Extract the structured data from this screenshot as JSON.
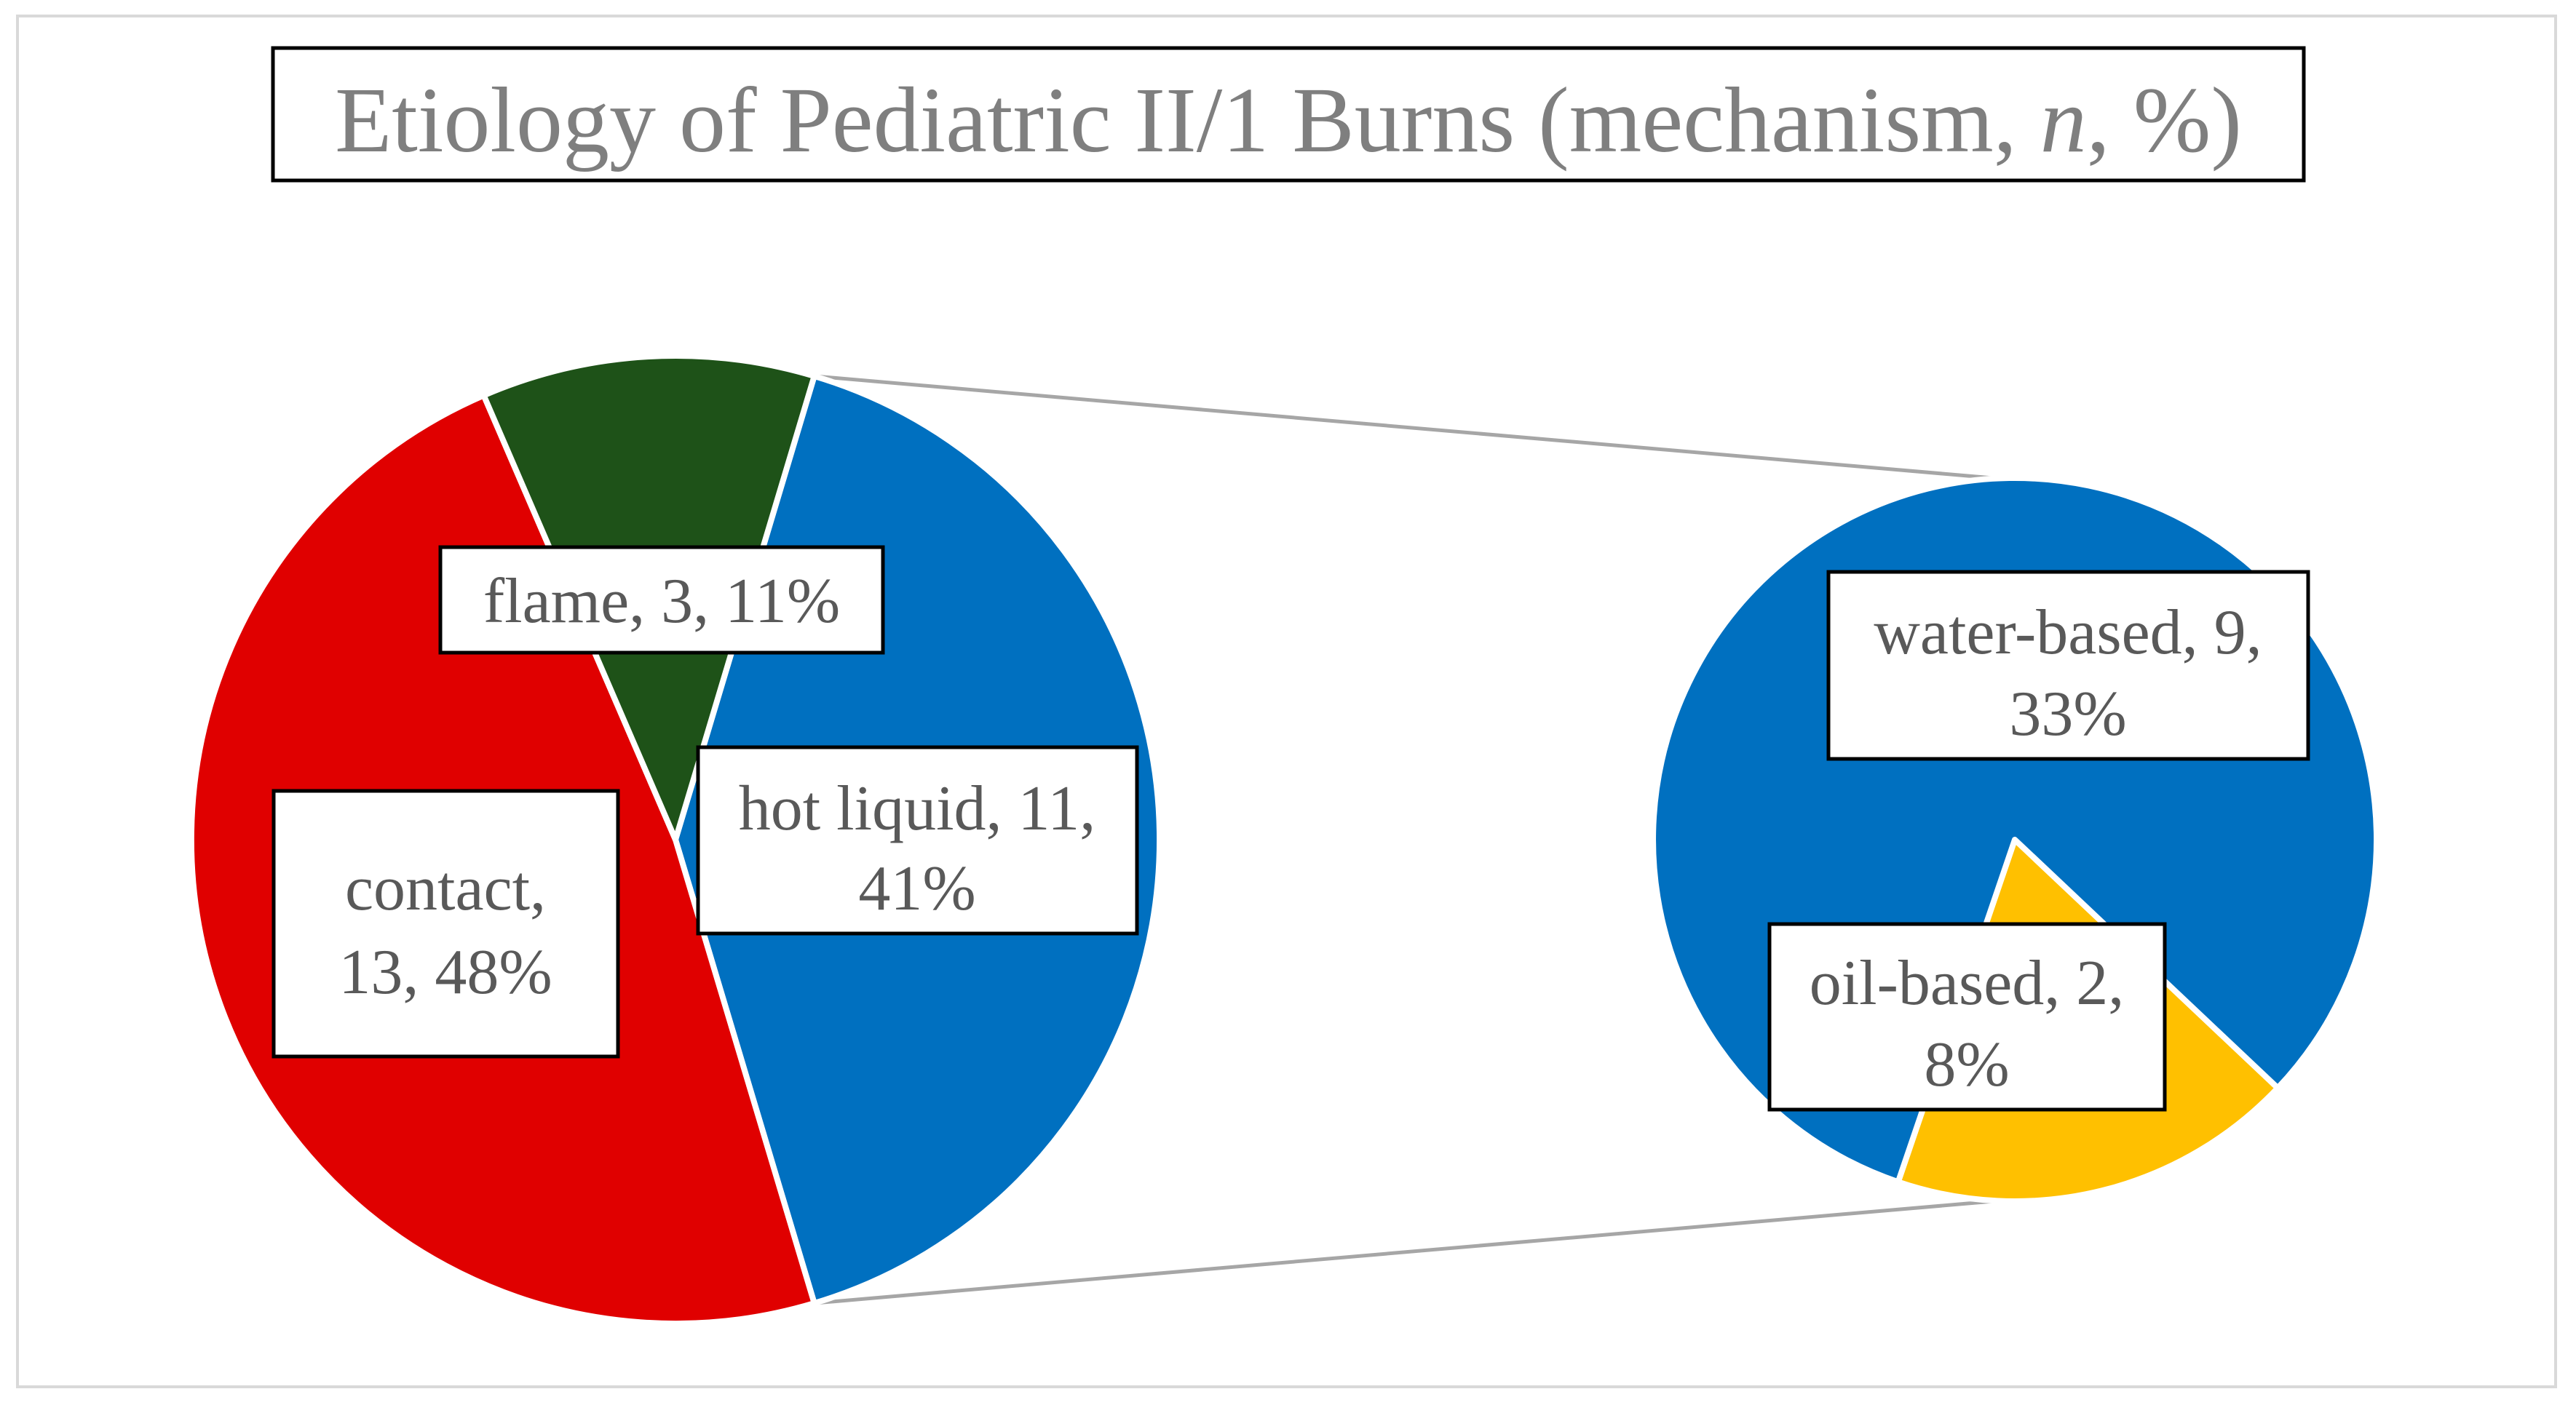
{
  "chart_data": {
    "type": "pie",
    "subtype": "pie-of-pie",
    "title": {
      "before_italic": "Etiology of Pediatric II/1 Burns (mechanism, ",
      "italic": "n",
      "after_italic": ", %)"
    },
    "primary_pie": {
      "slices": [
        {
          "name": "hot liquid",
          "n": 11,
          "percent": 41,
          "color": "#0070c0",
          "label_lines": [
            "hot liquid, 11,",
            "41%"
          ]
        },
        {
          "name": "contact",
          "n": 13,
          "percent": 48,
          "color": "#e00000",
          "label_lines": [
            "contact,",
            "13, 48%"
          ]
        },
        {
          "name": "flame",
          "n": 3,
          "percent": 11,
          "color": "#1e5218",
          "label_lines": [
            "flame, 3, 11%"
          ]
        }
      ]
    },
    "secondary_pie": {
      "source_slice": "hot liquid",
      "slices": [
        {
          "name": "oil-based",
          "n": 2,
          "percent": 8,
          "color": "#ffc000",
          "label_lines": [
            "oil-based, 2,",
            "8%"
          ]
        },
        {
          "name": "water-based",
          "n": 9,
          "percent": 33,
          "color": "#0070c0",
          "label_lines": [
            "water-based, 9,",
            "33%"
          ]
        }
      ]
    },
    "connector_color": "#a6a6a6",
    "border_color": "#d9d9d9"
  }
}
